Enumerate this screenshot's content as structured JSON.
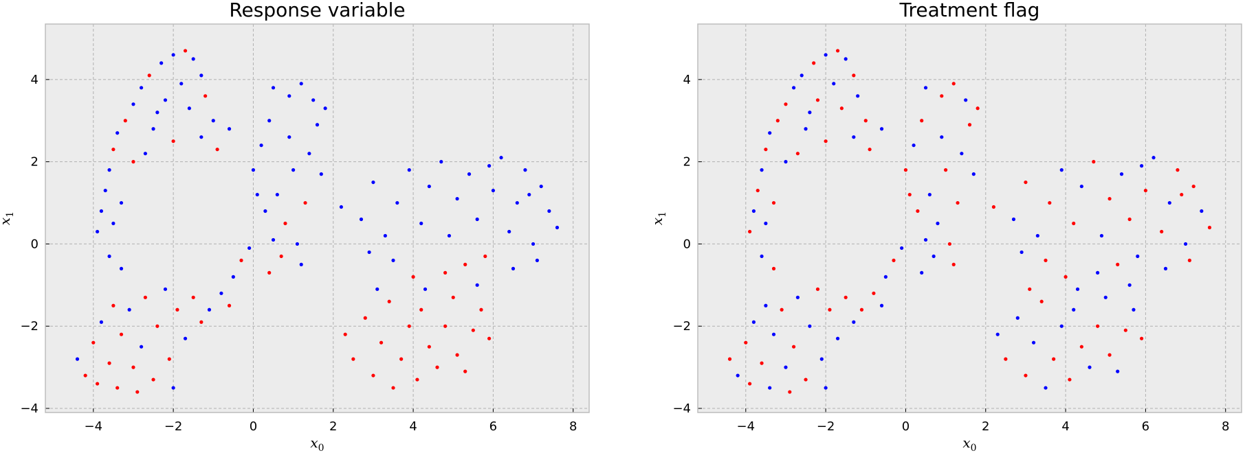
{
  "chart_data": [
    {
      "type": "scatter",
      "title": "Response variable",
      "xlabel": "x",
      "xlabel_sub": "0",
      "ylabel": "x",
      "ylabel_sub": "1",
      "xlim": [
        -5.2,
        8.4
      ],
      "ylim": [
        -4.1,
        5.35
      ],
      "xticks": [
        -4,
        -2,
        0,
        2,
        4,
        6,
        8
      ],
      "yticks": [
        -4,
        -2,
        0,
        2,
        4
      ],
      "grid": true,
      "color_field": "response",
      "colors": {
        "0": "#0000ff",
        "1": "#ff0000"
      }
    },
    {
      "type": "scatter",
      "title": "Treatment flag",
      "xlabel": "x",
      "xlabel_sub": "0",
      "ylabel": "x",
      "ylabel_sub": "1",
      "xlim": [
        -5.2,
        8.4
      ],
      "ylim": [
        -4.1,
        5.35
      ],
      "xticks": [
        -4,
        -2,
        0,
        2,
        4,
        6,
        8
      ],
      "yticks": [
        -4,
        -2,
        0,
        2,
        4
      ],
      "grid": true,
      "color_field": "treatment",
      "colors": {
        "0": "#0000ff",
        "1": "#ff0000"
      }
    }
  ],
  "points_fields": [
    "x0",
    "x1",
    "response",
    "treatment"
  ],
  "points": [
    [
      -3.9,
      0.3,
      0,
      1
    ],
    [
      -3.8,
      0.8,
      0,
      0
    ],
    [
      -3.7,
      1.3,
      0,
      1
    ],
    [
      -3.6,
      1.8,
      0,
      0
    ],
    [
      -3.5,
      2.3,
      1,
      1
    ],
    [
      -3.4,
      2.7,
      0,
      0
    ],
    [
      -3.2,
      3.0,
      1,
      1
    ],
    [
      -3.0,
      3.4,
      0,
      1
    ],
    [
      -2.8,
      3.8,
      0,
      0
    ],
    [
      -2.6,
      4.1,
      1,
      0
    ],
    [
      -2.3,
      4.4,
      0,
      1
    ],
    [
      -2.0,
      4.6,
      0,
      0
    ],
    [
      -1.7,
      4.7,
      1,
      1
    ],
    [
      -1.5,
      4.5,
      0,
      0
    ],
    [
      -1.3,
      4.1,
      0,
      1
    ],
    [
      -1.2,
      3.6,
      1,
      0
    ],
    [
      -1.0,
      3.0,
      0,
      1
    ],
    [
      -1.3,
      2.6,
      0,
      0
    ],
    [
      -2.0,
      2.5,
      1,
      1
    ],
    [
      -2.5,
      2.8,
      0,
      0
    ],
    [
      -2.2,
      3.5,
      0,
      1
    ],
    [
      -1.8,
      3.9,
      0,
      0
    ],
    [
      -3.3,
      1.0,
      0,
      1
    ],
    [
      -3.5,
      0.5,
      0,
      0
    ],
    [
      -3.0,
      2.0,
      1,
      0
    ],
    [
      -2.7,
      2.2,
      0,
      1
    ],
    [
      -3.6,
      -0.3,
      0,
      0
    ],
    [
      -3.3,
      -0.6,
      0,
      1
    ],
    [
      -0.6,
      2.8,
      0,
      0
    ],
    [
      -0.9,
      2.3,
      1,
      1
    ],
    [
      -2.4,
      3.2,
      0,
      0
    ],
    [
      -1.6,
      3.3,
      0,
      1
    ],
    [
      0.0,
      1.8,
      0,
      1
    ],
    [
      0.2,
      2.4,
      0,
      0
    ],
    [
      0.4,
      3.0,
      0,
      1
    ],
    [
      0.5,
      3.8,
      0,
      0
    ],
    [
      0.9,
      3.6,
      0,
      1
    ],
    [
      1.2,
      3.9,
      0,
      1
    ],
    [
      1.5,
      3.5,
      0,
      0
    ],
    [
      1.6,
      2.9,
      0,
      1
    ],
    [
      1.4,
      2.2,
      0,
      0
    ],
    [
      1.0,
      1.8,
      0,
      1
    ],
    [
      0.6,
      1.2,
      0,
      0
    ],
    [
      0.3,
      0.8,
      0,
      1
    ],
    [
      0.8,
      0.5,
      1,
      0
    ],
    [
      1.1,
      0.0,
      0,
      1
    ],
    [
      0.5,
      0.1,
      0,
      0
    ],
    [
      1.3,
      1.0,
      1,
      1
    ],
    [
      0.9,
      2.6,
      0,
      0
    ],
    [
      0.1,
      1.2,
      0,
      1
    ],
    [
      1.7,
      1.7,
      0,
      0
    ],
    [
      1.8,
      3.3,
      0,
      1
    ],
    [
      0.7,
      -0.3,
      1,
      0
    ],
    [
      1.2,
      -0.5,
      0,
      1
    ],
    [
      0.4,
      -0.7,
      1,
      0
    ],
    [
      2.2,
      0.9,
      0,
      1
    ],
    [
      2.7,
      0.6,
      0,
      0
    ],
    [
      3.0,
      1.5,
      0,
      1
    ],
    [
      3.3,
      0.2,
      0,
      0
    ],
    [
      3.6,
      1.0,
      0,
      1
    ],
    [
      3.9,
      1.8,
      0,
      0
    ],
    [
      4.2,
      0.5,
      0,
      1
    ],
    [
      4.4,
      1.4,
      0,
      0
    ],
    [
      4.7,
      2.0,
      0,
      1
    ],
    [
      4.9,
      0.2,
      0,
      0
    ],
    [
      5.1,
      1.1,
      0,
      1
    ],
    [
      5.4,
      1.7,
      0,
      0
    ],
    [
      5.6,
      0.6,
      0,
      1
    ],
    [
      5.8,
      -0.3,
      1,
      0
    ],
    [
      6.0,
      1.3,
      0,
      1
    ],
    [
      6.2,
      2.1,
      0,
      0
    ],
    [
      6.4,
      0.3,
      0,
      1
    ],
    [
      6.6,
      1.0,
      0,
      0
    ],
    [
      6.8,
      1.8,
      0,
      1
    ],
    [
      7.0,
      0.0,
      0,
      0
    ],
    [
      7.2,
      1.4,
      0,
      1
    ],
    [
      7.4,
      0.8,
      0,
      0
    ],
    [
      7.6,
      0.4,
      0,
      1
    ],
    [
      7.1,
      -0.4,
      0,
      1
    ],
    [
      6.5,
      -0.6,
      0,
      0
    ],
    [
      5.3,
      -0.5,
      1,
      1
    ],
    [
      4.8,
      -0.7,
      1,
      0
    ],
    [
      3.5,
      -0.4,
      0,
      1
    ],
    [
      2.9,
      -0.2,
      0,
      0
    ],
    [
      4.0,
      -0.8,
      1,
      1
    ],
    [
      5.9,
      1.9,
      0,
      0
    ],
    [
      6.9,
      1.2,
      0,
      1
    ],
    [
      -4.4,
      -2.8,
      0,
      1
    ],
    [
      -4.2,
      -3.2,
      1,
      0
    ],
    [
      -4.0,
      -2.4,
      1,
      1
    ],
    [
      -3.8,
      -1.9,
      0,
      0
    ],
    [
      -3.6,
      -2.9,
      1,
      1
    ],
    [
      -3.4,
      -3.5,
      1,
      0
    ],
    [
      -3.3,
      -2.2,
      1,
      0
    ],
    [
      -3.1,
      -1.6,
      0,
      1
    ],
    [
      -3.0,
      -3.0,
      1,
      0
    ],
    [
      -2.8,
      -2.5,
      0,
      1
    ],
    [
      -2.7,
      -1.3,
      1,
      0
    ],
    [
      -2.5,
      -3.3,
      1,
      1
    ],
    [
      -2.4,
      -2.0,
      1,
      0
    ],
    [
      -2.2,
      -1.1,
      0,
      1
    ],
    [
      -2.1,
      -2.8,
      1,
      0
    ],
    [
      -1.9,
      -1.6,
      1,
      1
    ],
    [
      -1.7,
      -2.3,
      0,
      0
    ],
    [
      -1.5,
      -1.3,
      1,
      1
    ],
    [
      -1.3,
      -1.9,
      1,
      0
    ],
    [
      -1.1,
      -1.6,
      0,
      1
    ],
    [
      -3.9,
      -3.4,
      1,
      1
    ],
    [
      -3.5,
      -1.5,
      1,
      0
    ],
    [
      -2.9,
      -3.6,
      1,
      1
    ],
    [
      -2.0,
      -3.5,
      0,
      0
    ],
    [
      -0.8,
      -1.2,
      0,
      1
    ],
    [
      -0.5,
      -0.8,
      0,
      0
    ],
    [
      -0.3,
      -0.4,
      1,
      1
    ],
    [
      -0.1,
      -0.1,
      0,
      0
    ],
    [
      -0.6,
      -1.5,
      1,
      0
    ],
    [
      2.3,
      -2.2,
      1,
      0
    ],
    [
      2.5,
      -2.8,
      1,
      1
    ],
    [
      2.8,
      -1.8,
      1,
      0
    ],
    [
      3.0,
      -3.2,
      1,
      1
    ],
    [
      3.2,
      -2.4,
      1,
      0
    ],
    [
      3.4,
      -1.4,
      1,
      1
    ],
    [
      3.5,
      -3.5,
      1,
      0
    ],
    [
      3.7,
      -2.8,
      1,
      1
    ],
    [
      3.9,
      -2.0,
      1,
      0
    ],
    [
      4.1,
      -3.3,
      1,
      1
    ],
    [
      4.2,
      -1.6,
      1,
      0
    ],
    [
      4.4,
      -2.5,
      1,
      1
    ],
    [
      4.6,
      -3.0,
      1,
      0
    ],
    [
      4.8,
      -2.0,
      1,
      1
    ],
    [
      5.0,
      -1.3,
      1,
      0
    ],
    [
      5.1,
      -2.7,
      1,
      1
    ],
    [
      5.3,
      -3.1,
      1,
      0
    ],
    [
      5.5,
      -2.1,
      1,
      1
    ],
    [
      5.7,
      -1.6,
      1,
      0
    ],
    [
      5.9,
      -2.3,
      1,
      1
    ],
    [
      4.3,
      -1.1,
      0,
      0
    ],
    [
      3.1,
      -1.1,
      0,
      1
    ],
    [
      5.6,
      -1.0,
      0,
      0
    ]
  ]
}
